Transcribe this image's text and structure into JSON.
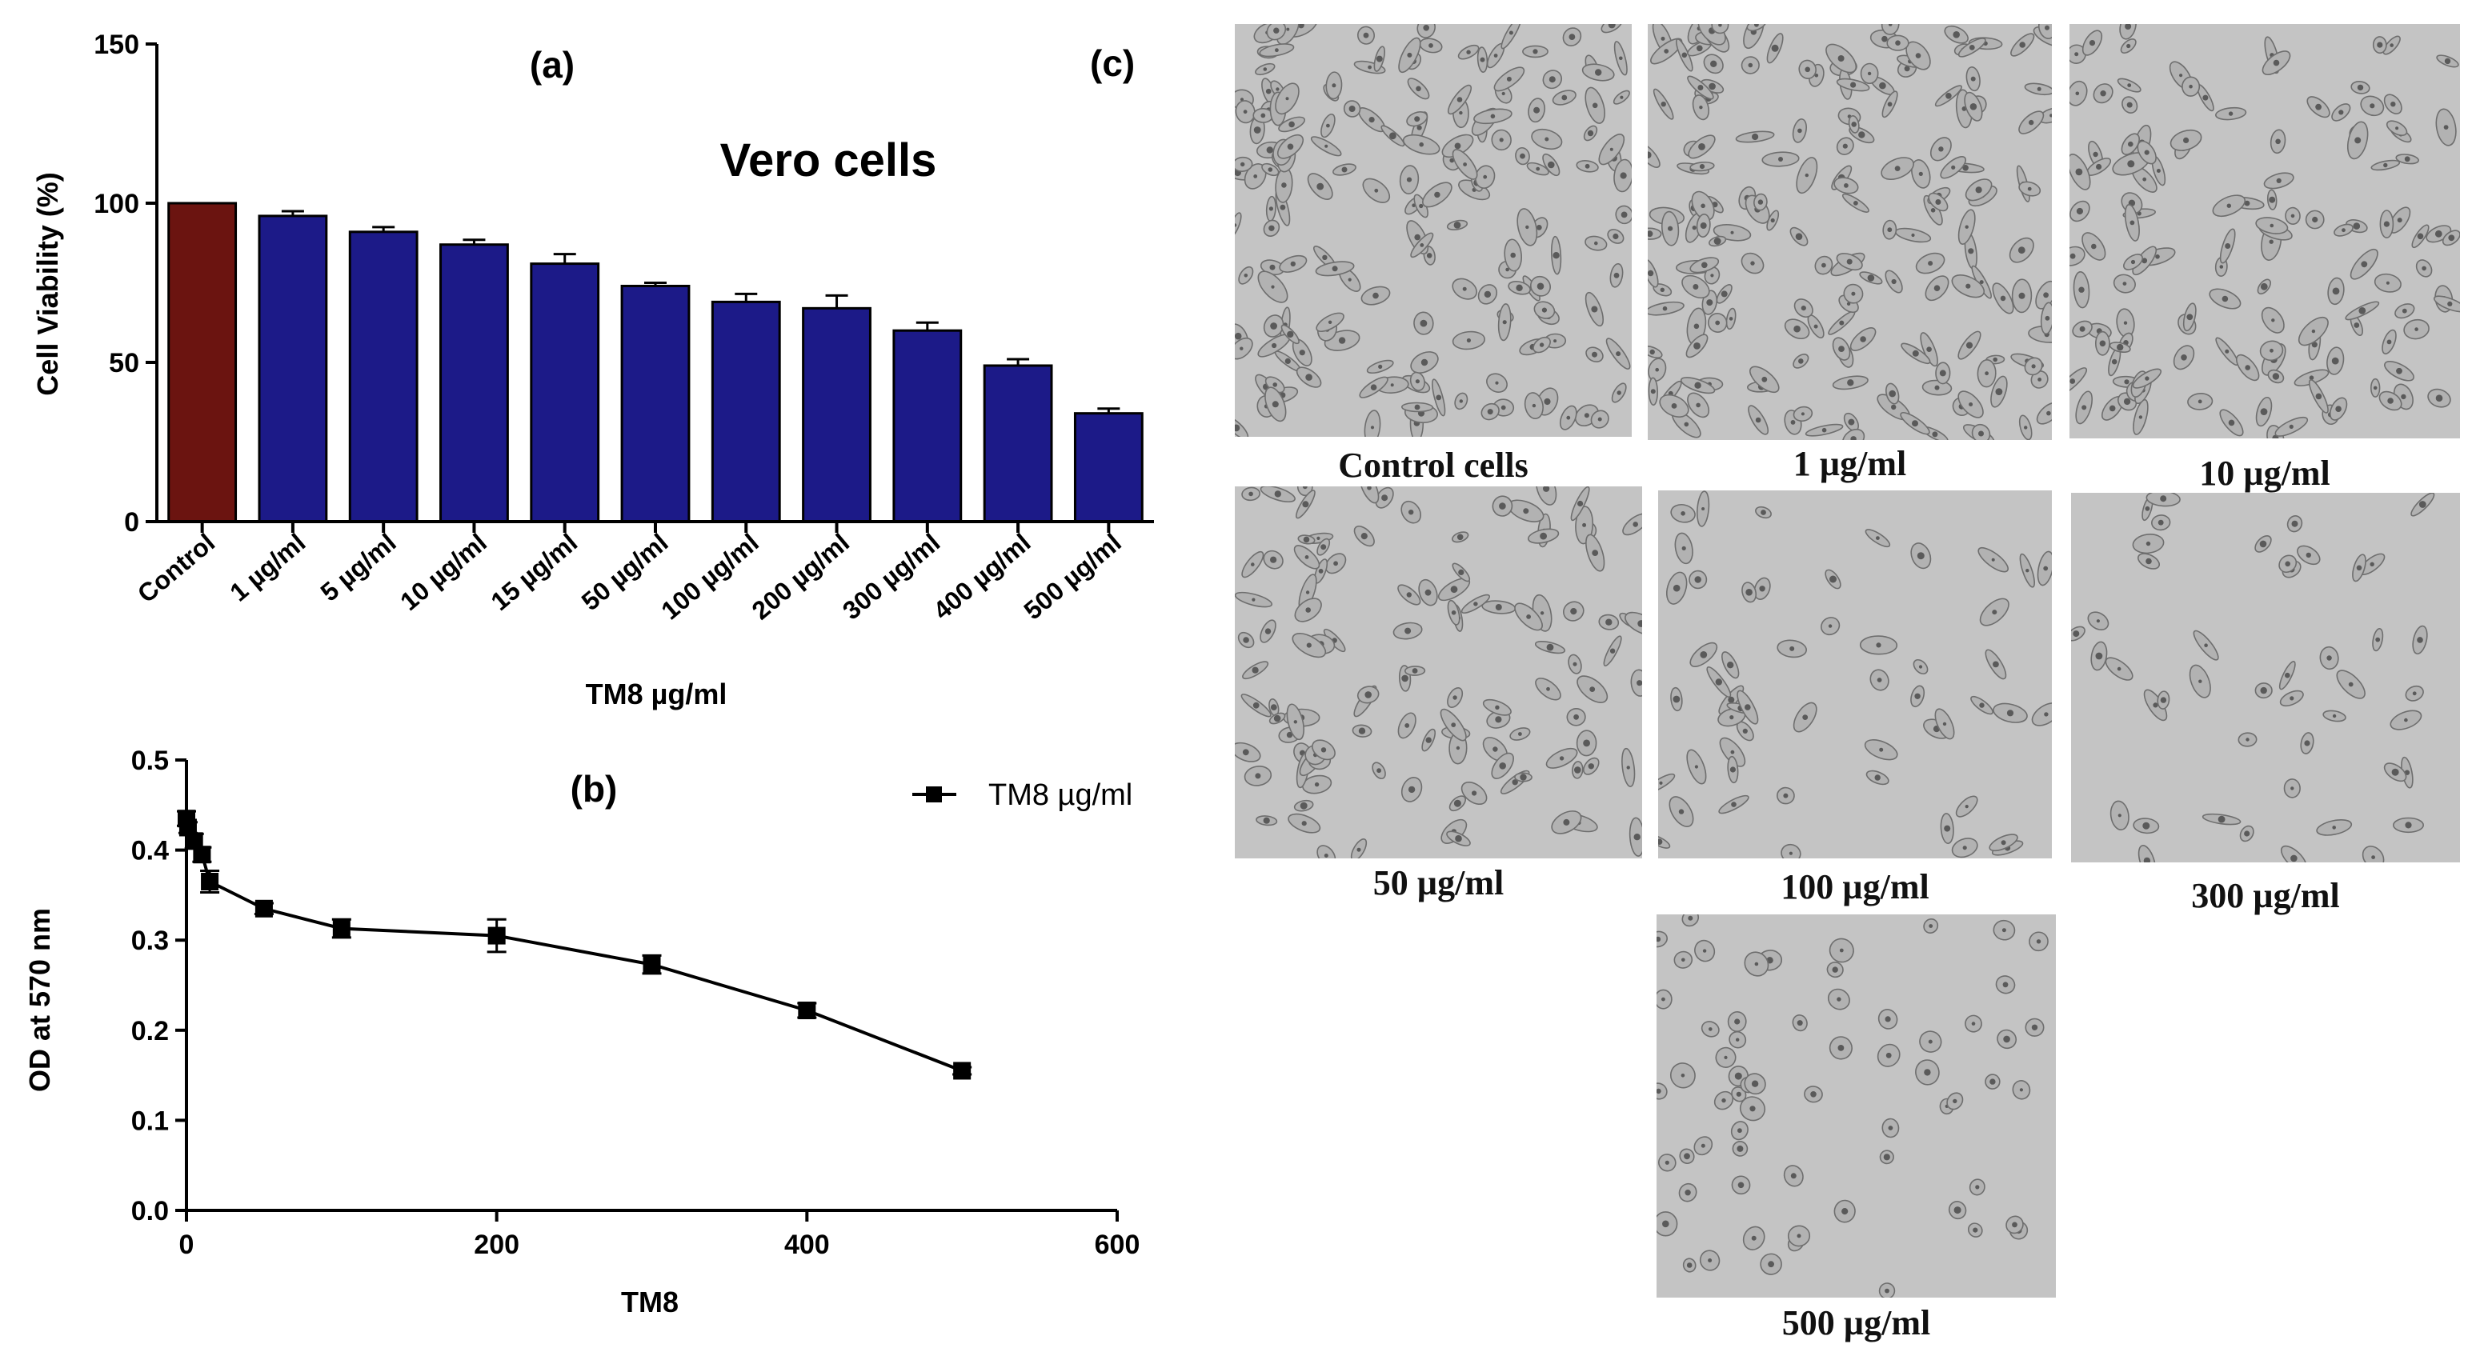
{
  "chart_data": [
    {
      "id": "a",
      "type": "bar",
      "panel_label": "(a)",
      "title": "Vero cells",
      "ylabel": "Cell Viability (%)",
      "xlabel": "TM8 µg/ml",
      "ylim": [
        0,
        150
      ],
      "yticks": [
        0,
        50,
        100,
        150
      ],
      "categories": [
        "Control",
        "1 µg/ml",
        "5 µg/ml",
        "10 µg/ml",
        "15 µg/ml",
        "50 µg/ml",
        "100 µg/ml",
        "200 µg/ml",
        "300 µg/ml",
        "400 µg/ml",
        "500 µg/ml"
      ],
      "values": [
        100,
        96,
        91,
        87,
        81,
        74,
        69,
        67,
        60,
        49,
        34
      ],
      "errors": [
        0,
        1.5,
        1.5,
        1.5,
        3,
        1,
        2.5,
        4,
        2.5,
        2,
        1.5
      ],
      "colors": {
        "control": "#6b1410",
        "treated": "#1c1a88",
        "edge": "#000000"
      }
    },
    {
      "id": "b",
      "type": "line",
      "panel_label": "(b)",
      "ylabel": "OD at 570 nm",
      "xlabel": "TM8",
      "xlim": [
        0,
        600
      ],
      "ylim": [
        0,
        0.5
      ],
      "xticks": [
        0,
        200,
        400,
        600
      ],
      "yticks": [
        "0.0",
        "0.1",
        "0.2",
        "0.3",
        "0.4",
        "0.5"
      ],
      "series": [
        {
          "name": "TM8 µg/ml",
          "x": [
            0,
            1,
            5,
            10,
            15,
            50,
            100,
            200,
            300,
            400,
            500
          ],
          "y": [
            0.435,
            0.425,
            0.41,
            0.395,
            0.365,
            0.335,
            0.313,
            0.305,
            0.273,
            0.222,
            0.155
          ],
          "err": [
            0.008,
            0.006,
            0.008,
            0.008,
            0.012,
            0.006,
            0.01,
            0.018,
            0.01,
            0.008,
            0.004
          ],
          "color": "#000000"
        }
      ]
    }
  ],
  "micrographs": {
    "panel_label": "(c)",
    "captions": {
      "control": "Control cells",
      "c1": "1 µg/ml",
      "c10": "10 µg/ml",
      "c50": "50 µg/ml",
      "c100": "100 µg/ml",
      "c300": "300 µg/ml",
      "c500": "500 µg/ml"
    }
  }
}
